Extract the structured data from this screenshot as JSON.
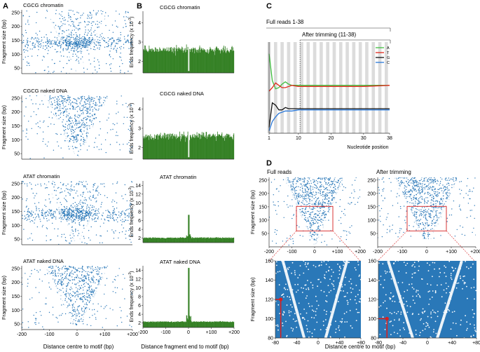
{
  "colors": {
    "scatter": "#2a78b8",
    "bars": "#2e7d1e",
    "A": "#3fbf3f",
    "T": "#e02a1c",
    "G": "#111111",
    "C": "#2a78d8",
    "zoom_box": "#d62020",
    "axis": "#333333"
  },
  "panel_letters": [
    "A",
    "B",
    "C",
    "D"
  ],
  "panel_a": {
    "xlabel": "Distance centre to motif (bp)",
    "ylabel": "Fragment size (bp)",
    "xticks": [
      "-200",
      "-100",
      "0",
      "+100",
      "+200"
    ],
    "yticks": [
      "50",
      "100",
      "150",
      "200",
      "250"
    ],
    "titles": [
      "CGCG chromatin",
      "CGCG naked DNA",
      "ATAT chromatin",
      "ATAT naked DNA"
    ]
  },
  "panel_b": {
    "xlabel": "Distance fragment end to motif (bp)",
    "ylabel": "Ends frequency (x 10",
    "ylabel_exp": "-3",
    "ylabel_close": ")",
    "xticks": [
      "-200",
      "-100",
      "0",
      "+100",
      "+200"
    ],
    "titles": [
      "CGCG chromatin",
      "CGCG naked DNA",
      "ATAT chromatin",
      "ATAT naked DNA"
    ],
    "yticks": [
      [
        "2",
        "3",
        "4"
      ],
      [
        "2",
        "3",
        "4"
      ],
      [
        "2",
        "4",
        "6",
        "8",
        "10",
        "12",
        "14"
      ],
      [
        "2",
        "4",
        "6",
        "8",
        "10",
        "12",
        "14"
      ]
    ]
  },
  "panel_c": {
    "full_reads": "Full reads 1-38",
    "after_trimming": "After trimming (11-38)",
    "xlabel": "Nucleotide position",
    "xticks": [
      "1",
      "10",
      "20",
      "30",
      "38"
    ],
    "legend": [
      "A",
      "T",
      "G",
      "C"
    ]
  },
  "panel_d": {
    "full_reads": "Full reads",
    "after_trimming": "After trimming",
    "xlabel": "Distance centre to motif (bp)",
    "ylabel": "Fragment size (bp)",
    "top_xticks": [
      "-200",
      "-100",
      "0",
      "+100",
      "+200"
    ],
    "top_yticks": [
      "50",
      "100",
      "150",
      "200",
      "250"
    ],
    "zoom_xticks": [
      "-80",
      "-40",
      "0",
      "+40",
      "+80"
    ],
    "zoom_yticks": [
      "80",
      "100",
      "120",
      "140",
      "160"
    ],
    "marker_left": 120,
    "marker_right": 100
  },
  "chart_data": [
    {
      "type": "scatter",
      "title": "CGCG chromatin",
      "xlabel": "Distance centre to motif (bp)",
      "ylabel": "Fragment size (bp)",
      "xlim": [
        -200,
        200
      ],
      "ylim": [
        30,
        260
      ]
    },
    {
      "type": "scatter",
      "title": "CGCG naked DNA",
      "xlim": [
        -200,
        200
      ],
      "ylim": [
        30,
        260
      ]
    },
    {
      "type": "scatter",
      "title": "ATAT chromatin",
      "xlim": [
        -200,
        200
      ],
      "ylim": [
        30,
        260
      ]
    },
    {
      "type": "scatter",
      "title": "ATAT naked DNA",
      "xlim": [
        -200,
        200
      ],
      "ylim": [
        30,
        260
      ]
    },
    {
      "type": "bar",
      "title": "CGCG chromatin",
      "ylabel": "Ends frequency (x 10-3)",
      "xlim": [
        -200,
        200
      ],
      "ylim": [
        1.4,
        4.6
      ],
      "baseline": 2.6,
      "peak_at_zero": 1.5
    },
    {
      "type": "bar",
      "title": "CGCG naked DNA",
      "xlim": [
        -200,
        200
      ],
      "ylim": [
        1.4,
        4.6
      ],
      "baseline": 2.6,
      "peak_at_zero": 1.5
    },
    {
      "type": "bar",
      "title": "ATAT chromatin",
      "xlabel": "Distance fragment end to motif (bp)",
      "xlim": [
        -200,
        200
      ],
      "ylim": [
        1,
        15
      ],
      "baseline": 2.1,
      "peak_at_zero": 7.3
    },
    {
      "type": "bar",
      "title": "ATAT naked DNA",
      "xlim": [
        -200,
        200
      ],
      "ylim": [
        1,
        15
      ],
      "baseline": 2.3,
      "peak_at_zero": 14.5
    },
    {
      "type": "line",
      "title": "Full reads 1-38",
      "xlabel": "Nucleotide position",
      "x": [
        1,
        2,
        3,
        4,
        5,
        6,
        7,
        8,
        10,
        12,
        15,
        20,
        25,
        30,
        38
      ],
      "series": [
        {
          "name": "A",
          "values": [
            0.68,
            0.45,
            0.38,
            0.39,
            0.42,
            0.44,
            0.42,
            0.41,
            0.41,
            0.41,
            0.41,
            0.41,
            0.41,
            0.41,
            0.41
          ]
        },
        {
          "name": "T",
          "values": [
            0.36,
            0.39,
            0.43,
            0.41,
            0.39,
            0.39,
            0.4,
            0.41,
            0.4,
            0.4,
            0.4,
            0.4,
            0.4,
            0.4,
            0.41
          ]
        },
        {
          "name": "G",
          "values": [
            0.05,
            0.26,
            0.24,
            0.2,
            0.2,
            0.22,
            0.21,
            0.21,
            0.21,
            0.21,
            0.21,
            0.21,
            0.21,
            0.21,
            0.21
          ]
        },
        {
          "name": "C",
          "values": [
            0.02,
            0.1,
            0.14,
            0.17,
            0.18,
            0.19,
            0.19,
            0.19,
            0.2,
            0.2,
            0.2,
            0.2,
            0.2,
            0.2,
            0.2
          ]
        }
      ]
    },
    {
      "type": "scatter",
      "title": "Full reads",
      "xlim": [
        -200,
        200
      ],
      "ylim": [
        0,
        260
      ]
    },
    {
      "type": "scatter",
      "title": "After trimming",
      "xlim": [
        -200,
        200
      ],
      "ylim": [
        0,
        260
      ]
    },
    {
      "type": "scatter",
      "xlim": [
        -80,
        80
      ],
      "ylim": [
        80,
        160
      ],
      "marker": 120
    },
    {
      "type": "scatter",
      "xlim": [
        -80,
        80
      ],
      "ylim": [
        80,
        160
      ],
      "marker": 100
    }
  ]
}
